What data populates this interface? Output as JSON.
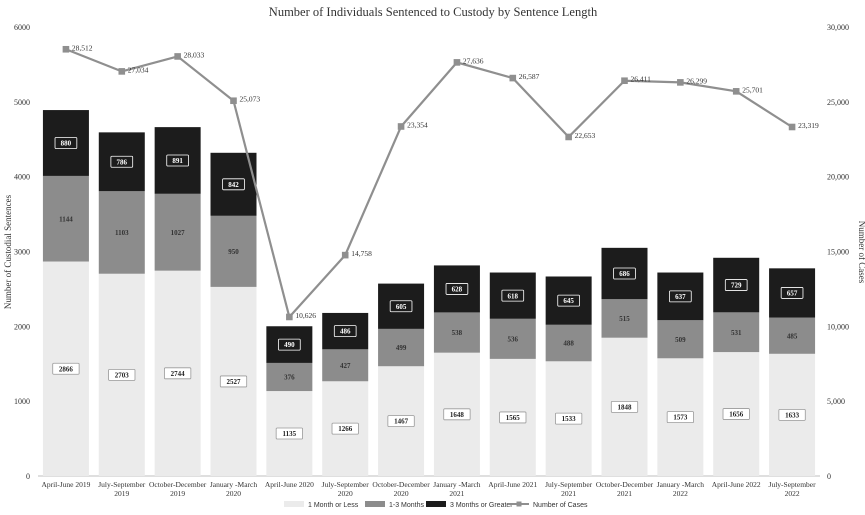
{
  "chart_data": {
    "type": "bar",
    "stacked": true,
    "title": "Number of Individuals Sentenced to Custody by Sentence Length",
    "ylabel": "Number of Custodial Sentences",
    "y2label": "Number of Cases",
    "ylim": [
      0,
      6000
    ],
    "y2lim": [
      0,
      30000
    ],
    "yticks": [
      "0",
      "1000",
      "2000",
      "3000",
      "4000",
      "5000",
      "6000"
    ],
    "y2ticks": [
      "0",
      "5,000",
      "10,000",
      "15,000",
      "20,000",
      "25,000",
      "30,000"
    ],
    "grid": false,
    "legend_position": "bottom",
    "categories": [
      [
        "April-June 2019"
      ],
      [
        "July-September",
        "2019"
      ],
      [
        "October-December",
        "2019"
      ],
      [
        "January -March",
        "2020"
      ],
      [
        "April-June 2020"
      ],
      [
        "July-September",
        "2020"
      ],
      [
        "October-December",
        "2020"
      ],
      [
        "January -March",
        "2021"
      ],
      [
        "April-June 2021"
      ],
      [
        "July-September",
        "2021"
      ],
      [
        "October-December",
        "2021"
      ],
      [
        "January -March",
        "2022"
      ],
      [
        "April-June 2022"
      ],
      [
        "July-September",
        "2022"
      ]
    ],
    "series": [
      {
        "name": "1 Month or Less",
        "color": "#ebebeb",
        "label_color": "#222222",
        "values": [
          2866,
          2703,
          2744,
          2527,
          1135,
          1266,
          1467,
          1648,
          1565,
          1533,
          1848,
          1573,
          1656,
          1633
        ]
      },
      {
        "name": "1-3 Months",
        "color": "#8c8c8c",
        "label_color": "#333333",
        "values": [
          1144,
          1103,
          1027,
          950,
          376,
          427,
          499,
          538,
          536,
          488,
          515,
          509,
          531,
          485
        ]
      },
      {
        "name": "3 Months or Greater",
        "color": "#1c1c1c",
        "label_color": "#111111",
        "values": [
          880,
          786,
          891,
          842,
          490,
          486,
          605,
          628,
          618,
          645,
          686,
          637,
          729,
          657
        ]
      }
    ],
    "line_series": {
      "name": "Number of Cases",
      "color": "#8f8f8f",
      "axis": "right",
      "values": [
        28512,
        27034,
        28033,
        25073,
        10626,
        14758,
        23354,
        27636,
        26587,
        22653,
        26411,
        26299,
        25701,
        23319
      ],
      "labels": [
        "28,512",
        "27,034",
        "28,033",
        "25,073",
        "10,626",
        "14,758",
        "23,354",
        "27,636",
        "26,587",
        "22,653",
        "26,411",
        "26,299",
        "25,701",
        "23,319"
      ]
    }
  }
}
